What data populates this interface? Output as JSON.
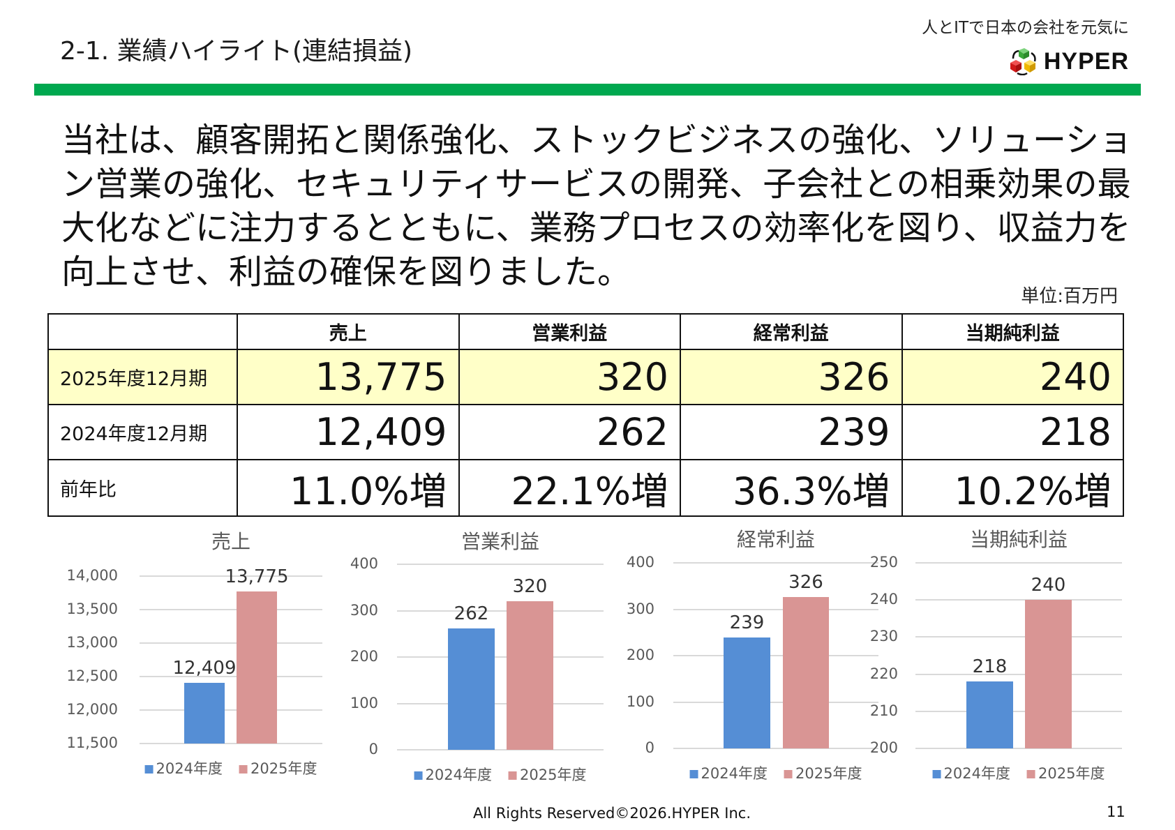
{
  "header": {
    "title": "2-1. 業績ハイライト(連結損益)",
    "tagline": "人とITで日本の会社を元気に",
    "logo_text": "HYPER",
    "accent_color": "#00a84f"
  },
  "summary": "当社は、顧客開拓と関係強化、ストックビジネスの強化、ソリューション営業の強化、セキュリティサービスの開発、子会社との相乗効果の最大化などに注力するとともに、業務プロセスの効率化を図り、収益力を向上させ、利益の確保を図りました。",
  "unit": "単位:百万円",
  "table": {
    "headers": [
      "",
      "売上",
      "営業利益",
      "経常利益",
      "当期純利益"
    ],
    "rows": [
      {
        "label": "2025年度12月期",
        "values": [
          "13,775",
          "320",
          "326",
          "240"
        ],
        "highlight": true
      },
      {
        "label": "2024年度12月期",
        "values": [
          "12,409",
          "262",
          "239",
          "218"
        ]
      },
      {
        "label": "前年比",
        "values": [
          "11.0%増",
          "22.1%増",
          "36.3%増",
          "10.2%増"
        ]
      }
    ]
  },
  "chart_data": [
    {
      "type": "bar",
      "title": "売上",
      "categories": [
        "2024年度",
        "2025年度"
      ],
      "values": [
        12409,
        13775
      ],
      "labels": [
        "12,409",
        "13,775"
      ],
      "ylim": [
        11500,
        14000
      ],
      "ticks": [
        "11,500",
        "12,000",
        "12,500",
        "13,000",
        "13,500",
        "14,000"
      ],
      "grid": true,
      "legend": "bottom",
      "colors": [
        "#558ed5",
        "#d99594"
      ]
    },
    {
      "type": "bar",
      "title": "営業利益",
      "categories": [
        "2024年度",
        "2025年度"
      ],
      "values": [
        262,
        320
      ],
      "labels": [
        "262",
        "320"
      ],
      "ylim": [
        0,
        400
      ],
      "ticks": [
        "0",
        "100",
        "200",
        "300",
        "400"
      ],
      "grid": true,
      "legend": "bottom",
      "colors": [
        "#558ed5",
        "#d99594"
      ]
    },
    {
      "type": "bar",
      "title": "経常利益",
      "categories": [
        "2024年度",
        "2025年度"
      ],
      "values": [
        239,
        326
      ],
      "labels": [
        "239",
        "326"
      ],
      "ylim": [
        0,
        400
      ],
      "ticks": [
        "0",
        "100",
        "200",
        "300",
        "400"
      ],
      "grid": true,
      "legend": "bottom",
      "colors": [
        "#558ed5",
        "#d99594"
      ]
    },
    {
      "type": "bar",
      "title": "当期純利益",
      "categories": [
        "2024年度",
        "2025年度"
      ],
      "values": [
        218,
        240
      ],
      "labels": [
        "218",
        "240"
      ],
      "ylim": [
        200,
        250
      ],
      "ticks": [
        "200",
        "210",
        "220",
        "230",
        "240",
        "250"
      ],
      "grid": true,
      "legend": "bottom",
      "colors": [
        "#558ed5",
        "#d99594"
      ]
    }
  ],
  "footer": {
    "copyright": "All Rights Reserved©2026.HYPER Inc.",
    "page": "11"
  }
}
